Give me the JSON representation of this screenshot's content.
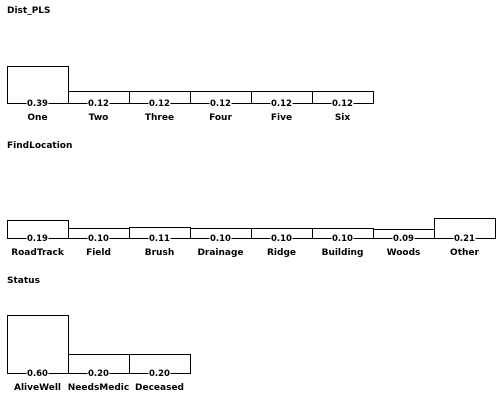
{
  "chart_data": [
    {
      "type": "bar",
      "title": "Dist_PLS",
      "categories": [
        "One",
        "Two",
        "Three",
        "Four",
        "Five",
        "Six"
      ],
      "values": [
        0.39,
        0.12,
        0.12,
        0.12,
        0.12,
        0.12
      ],
      "value_labels": [
        "0.39",
        "0.12",
        "0.12",
        "0.12",
        "0.12",
        "0.12"
      ]
    },
    {
      "type": "bar",
      "title": "FindLocation",
      "categories": [
        "RoadTrack",
        "Field",
        "Brush",
        "Drainage",
        "Ridge",
        "Building",
        "Woods",
        "Other"
      ],
      "values": [
        0.19,
        0.1,
        0.11,
        0.1,
        0.1,
        0.1,
        0.09,
        0.21
      ],
      "value_labels": [
        "0.19",
        "0.10",
        "0.11",
        "0.10",
        "0.10",
        "0.10",
        "0.09",
        "0.21"
      ]
    },
    {
      "type": "bar",
      "title": "Status",
      "categories": [
        "AliveWell",
        "NeedsMedic",
        "Deceased"
      ],
      "values": [
        0.6,
        0.2,
        0.2
      ],
      "value_labels": [
        "0.60",
        "0.20",
        "0.20"
      ]
    }
  ]
}
